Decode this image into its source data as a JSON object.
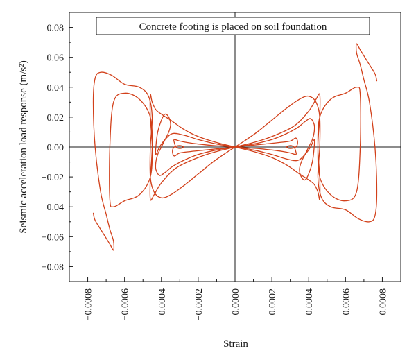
{
  "chart_data": {
    "type": "line",
    "title": "Concrete footing is placed on soil foundation",
    "xlabel": "Strain",
    "ylabel": "Seismic acceleration load response (m/s²)",
    "xlim": [
      -0.0009,
      0.0009
    ],
    "ylim": [
      -0.09,
      0.09
    ],
    "x_ticks": [
      -0.0008,
      -0.0006,
      -0.0004,
      -0.0002,
      0.0,
      0.0002,
      0.0004,
      0.0006,
      0.0008
    ],
    "x_tick_labels": [
      "−0.0008",
      "−0.0006",
      "−0.0004",
      "−0.0002",
      "0.0000",
      "0.0002",
      "0.0004",
      "0.0006",
      "0.0008"
    ],
    "y_ticks": [
      -0.08,
      -0.06,
      -0.04,
      -0.02,
      0.0,
      0.02,
      0.04,
      0.06,
      0.08
    ],
    "y_tick_labels": [
      "−0.08",
      "−0.06",
      "−0.04",
      "−0.02",
      "0.00",
      "0.02",
      "0.04",
      "0.06",
      "0.08"
    ],
    "grid": false,
    "color": "#d2401a",
    "series": [
      {
        "x": [
          0.0,
          5e-05,
          0.00012,
          0.0002,
          0.00028,
          0.00035,
          0.0004,
          0.00044,
          0.00046,
          0.00046,
          0.00045,
          0.00047,
          0.00052,
          0.0006,
          0.00067,
          0.00073,
          0.00076,
          0.00077,
          0.00076,
          0.00073,
          0.0007,
          0.00068,
          0.00066,
          0.00066,
          0.00068,
          0.00072,
          0.00076,
          0.00077
        ],
        "y": [
          0.0,
          0.004,
          0.01,
          0.018,
          0.026,
          0.032,
          0.034,
          0.03,
          0.02,
          0.0,
          -0.02,
          -0.034,
          -0.04,
          -0.042,
          -0.048,
          -0.05,
          -0.046,
          -0.03,
          0.0,
          0.03,
          0.045,
          0.055,
          0.063,
          0.069,
          0.065,
          0.057,
          0.049,
          0.044
        ]
      },
      {
        "x": [
          0.0,
          -5e-05,
          -0.00012,
          -0.0002,
          -0.00028,
          -0.00035,
          -0.0004,
          -0.00044,
          -0.00046,
          -0.00046,
          -0.00045,
          -0.00047,
          -0.00052,
          -0.0006,
          -0.00067,
          -0.00073,
          -0.00076,
          -0.00077,
          -0.00076,
          -0.00073,
          -0.0007,
          -0.00068,
          -0.00066,
          -0.00066,
          -0.00068,
          -0.00072,
          -0.00076,
          -0.00077
        ],
        "y": [
          0.0,
          -0.004,
          -0.01,
          -0.018,
          -0.026,
          -0.032,
          -0.034,
          -0.03,
          -0.02,
          0.0,
          0.02,
          0.034,
          0.04,
          0.042,
          0.048,
          0.05,
          0.046,
          0.03,
          0.0,
          -0.03,
          -0.045,
          -0.055,
          -0.063,
          -0.069,
          -0.065,
          -0.057,
          -0.049,
          -0.044
        ]
      },
      {
        "x": [
          0.0,
          0.0001,
          0.0002,
          0.00028,
          0.00035,
          0.0004,
          0.00043,
          0.00045,
          0.00046,
          0.00046,
          0.00045,
          0.00046,
          0.00052,
          0.0006,
          0.00066,
          0.00068,
          0.00068,
          0.00066,
          0.0006,
          0.00052,
          0.00046,
          0.00045,
          0.00046,
          0.00046,
          0.00044,
          0.0004,
          0.00032,
          0.0002,
          0.0001,
          0.0
        ],
        "y": [
          0.0,
          -0.003,
          -0.007,
          -0.012,
          -0.018,
          -0.022,
          -0.025,
          -0.03,
          -0.035,
          -0.02,
          0.0,
          0.02,
          0.032,
          0.036,
          0.04,
          0.035,
          0.0,
          -0.03,
          -0.036,
          -0.032,
          -0.02,
          0.0,
          0.02,
          0.035,
          0.032,
          0.024,
          0.014,
          0.007,
          0.003,
          0.0
        ]
      },
      {
        "x": [
          0.0,
          -0.0001,
          -0.0002,
          -0.00028,
          -0.00035,
          -0.0004,
          -0.00043,
          -0.00045,
          -0.00046,
          -0.00046,
          -0.00045,
          -0.00046,
          -0.00052,
          -0.0006,
          -0.00066,
          -0.00068,
          -0.00068,
          -0.00066,
          -0.0006,
          -0.00052,
          -0.00046,
          -0.00045,
          -0.00046,
          -0.00046,
          -0.00044,
          -0.0004,
          -0.00032,
          -0.0002,
          -0.0001,
          0.0
        ],
        "y": [
          0.0,
          0.003,
          0.007,
          0.012,
          0.018,
          0.022,
          0.025,
          0.03,
          0.035,
          0.02,
          0.0,
          -0.02,
          -0.032,
          -0.036,
          -0.04,
          -0.035,
          0.0,
          0.03,
          0.036,
          0.032,
          0.02,
          0.0,
          -0.02,
          -0.035,
          -0.032,
          -0.024,
          -0.014,
          -0.007,
          -0.003,
          0.0
        ]
      },
      {
        "x": [
          0.0,
          0.0001,
          0.0002,
          0.00028,
          0.00034,
          0.00038,
          0.00041,
          0.00043,
          0.00043,
          0.00042,
          0.0004,
          0.00038,
          0.00036,
          0.00035,
          0.00036,
          0.00038,
          0.0004,
          0.00042,
          0.00043,
          0.00043,
          0.00041,
          0.00038,
          0.00034,
          0.00028,
          0.0002,
          0.0001,
          0.0
        ],
        "y": [
          0.0,
          0.002,
          0.005,
          0.009,
          0.013,
          0.017,
          0.019,
          0.015,
          0.01,
          0.005,
          0.0,
          -0.005,
          -0.01,
          -0.015,
          -0.02,
          -0.022,
          -0.018,
          -0.01,
          0.0,
          0.005,
          0.0,
          -0.005,
          -0.009,
          -0.008,
          -0.005,
          -0.002,
          0.0
        ]
      },
      {
        "x": [
          0.0,
          -0.0001,
          -0.0002,
          -0.00028,
          -0.00034,
          -0.00038,
          -0.00041,
          -0.00043,
          -0.00043,
          -0.00042,
          -0.0004,
          -0.00038,
          -0.00036,
          -0.00035,
          -0.00036,
          -0.00038,
          -0.0004,
          -0.00042,
          -0.00043,
          -0.00043,
          -0.00041,
          -0.00038,
          -0.00034,
          -0.00028,
          -0.0002,
          -0.0001,
          0.0
        ],
        "y": [
          0.0,
          -0.002,
          -0.005,
          -0.009,
          -0.013,
          -0.017,
          -0.019,
          -0.015,
          -0.01,
          -0.005,
          0.0,
          0.005,
          0.01,
          0.015,
          0.02,
          0.022,
          0.018,
          0.01,
          0.0,
          -0.005,
          0.0,
          0.005,
          0.009,
          0.008,
          0.005,
          0.002,
          0.0
        ]
      },
      {
        "x": [
          0.0,
          8e-05,
          0.00016,
          0.00024,
          0.0003,
          0.00033,
          0.00034,
          0.00033,
          0.0003,
          0.00028,
          0.0003,
          0.00032,
          0.00033,
          0.00033,
          0.0003,
          0.00026,
          0.0002,
          0.00012,
          5e-05,
          0.0
        ],
        "y": [
          0.0,
          0.001,
          0.002,
          0.003,
          0.004,
          0.006,
          0.003,
          0.0,
          -0.001,
          0.0,
          0.001,
          0.0,
          -0.003,
          -0.005,
          -0.004,
          -0.003,
          -0.002,
          -0.001,
          -0.0005,
          0.0
        ]
      },
      {
        "x": [
          0.0,
          -8e-05,
          -0.00016,
          -0.00024,
          -0.0003,
          -0.00033,
          -0.00034,
          -0.00033,
          -0.0003,
          -0.00028,
          -0.0003,
          -0.00032,
          -0.00033,
          -0.00033,
          -0.0003,
          -0.00026,
          -0.0002,
          -0.00012,
          -5e-05,
          0.0
        ],
        "y": [
          0.0,
          -0.001,
          -0.002,
          -0.003,
          -0.004,
          -0.006,
          -0.003,
          0.0,
          0.001,
          0.0,
          -0.001,
          0.0,
          0.003,
          0.005,
          0.004,
          0.003,
          0.002,
          0.001,
          0.0005,
          0.0
        ]
      }
    ]
  }
}
